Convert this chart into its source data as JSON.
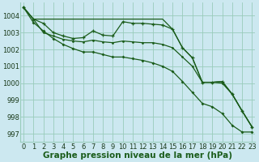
{
  "background_color": "#cce8f0",
  "grid_color": "#99ccbb",
  "line_color": "#1a5c1a",
  "xlabel": "Graphe pression niveau de la mer (hPa)",
  "xlabel_fontsize": 7.5,
  "tick_fontsize": 6,
  "ylim": [
    996.5,
    1004.8
  ],
  "xlim": [
    -0.3,
    23.3
  ],
  "yticks": [
    997,
    998,
    999,
    1000,
    1001,
    1002,
    1003,
    1004
  ],
  "xticks": [
    0,
    1,
    2,
    3,
    4,
    5,
    6,
    7,
    8,
    9,
    10,
    11,
    12,
    13,
    14,
    15,
    16,
    17,
    18,
    19,
    20,
    21,
    22,
    23
  ],
  "line1_y": [
    1004.5,
    1003.8,
    1003.8,
    1003.8,
    1003.8,
    1003.8,
    1003.8,
    1003.8,
    1003.8,
    1003.8,
    1003.8,
    1003.8,
    1003.8,
    1003.8,
    1003.8,
    1003.2,
    1002.1,
    1001.5,
    1000.05,
    1000.05,
    1000.1,
    999.35,
    998.35,
    997.4
  ],
  "line2_y": [
    1004.5,
    1003.8,
    1003.55,
    1003.0,
    1002.8,
    1002.65,
    1002.7,
    1003.1,
    1002.85,
    1002.8,
    1003.65,
    1003.55,
    1003.55,
    1003.5,
    1003.45,
    1003.2,
    1002.1,
    1001.5,
    1000.05,
    1000.05,
    1000.1,
    999.35,
    998.35,
    997.4
  ],
  "line3_y": [
    1004.5,
    1003.8,
    1003.0,
    1002.8,
    1002.6,
    1002.5,
    1002.45,
    1002.55,
    1002.45,
    1002.4,
    1002.5,
    1002.45,
    1002.4,
    1002.4,
    1002.3,
    1002.1,
    1001.55,
    1001.0,
    1000.05,
    1000.05,
    1000.0,
    999.35,
    998.35,
    997.4
  ],
  "line4_y": [
    1004.5,
    1003.6,
    1003.1,
    1002.65,
    1002.3,
    1002.05,
    1001.85,
    1001.85,
    1001.7,
    1001.55,
    1001.55,
    1001.45,
    1001.35,
    1001.2,
    1001.0,
    1000.7,
    1000.1,
    999.45,
    998.8,
    998.6,
    998.2,
    997.5,
    997.1,
    997.1
  ]
}
